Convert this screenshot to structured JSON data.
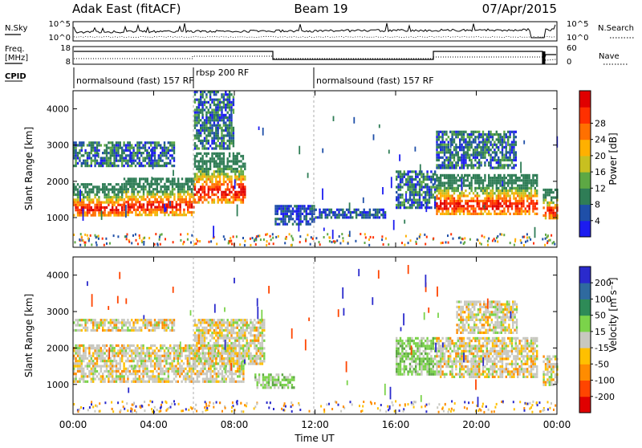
{
  "header": {
    "station": "Adak East (fitACF)",
    "beam": "Beam 19",
    "date": "07/Apr/2015"
  },
  "noise_panel": {
    "left_label": "N.Sky",
    "right_label": "N.Search",
    "left_ticks": [
      "10^5",
      "10^0"
    ],
    "right_ticks": [
      "10^5",
      "10^0"
    ]
  },
  "freq_panel": {
    "left_label_line1": "Freq.",
    "left_label_line2": "[MHz]",
    "right_label": "Nave",
    "left_ticks": [
      "18",
      "8"
    ],
    "right_ticks": [
      "60",
      "0"
    ],
    "cpid_label": "CPID"
  },
  "cpid_segments": [
    {
      "label": "normalsound (fast) 157 RF",
      "start_hour": 0
    },
    {
      "label": "rbsp 200 RF",
      "start_hour": 6
    },
    {
      "label": "normalsound (fast) 157 RF",
      "start_hour": 12
    }
  ],
  "time_axis": {
    "label": "Time UT",
    "ticks": [
      "00:00",
      "04:00",
      "08:00",
      "12:00",
      "16:00",
      "20:00",
      "00:00"
    ]
  },
  "chart_data": [
    {
      "type": "heatmap",
      "name": "power",
      "ylabel": "Slant Range [km]",
      "xlabel": "Time UT",
      "xlim": [
        0,
        24
      ],
      "ylim": [
        180,
        4500
      ],
      "yticks": [
        1000,
        2000,
        3000,
        4000
      ],
      "colorbar": {
        "label": "Power [dB]",
        "ticks": [
          "4",
          "8",
          "12",
          "16",
          "20",
          "24",
          "28"
        ],
        "colors": [
          "#1c1cf0",
          "#1f4fa8",
          "#2f7d56",
          "#5da844",
          "#c8c020",
          "#ffb000",
          "#ff7000",
          "#ff3000",
          "#e00000"
        ]
      },
      "echo_bands": [
        {
          "t0": 0.0,
          "t1": 2.5,
          "r0": 1050,
          "r1": 1950,
          "level": "high"
        },
        {
          "t0": 2.5,
          "t1": 6.0,
          "r0": 1100,
          "r1": 2100,
          "level": "high"
        },
        {
          "t0": 6.0,
          "t1": 8.5,
          "r0": 1400,
          "r1": 2800,
          "level": "high"
        },
        {
          "t0": 0.0,
          "t1": 5.0,
          "r0": 2450,
          "r1": 3100,
          "level": "mid"
        },
        {
          "t0": 6.0,
          "t1": 8.0,
          "r0": 2900,
          "r1": 4500,
          "level": "mid"
        },
        {
          "t0": 10.0,
          "t1": 12.0,
          "r0": 850,
          "r1": 1350,
          "level": "low"
        },
        {
          "t0": 12.0,
          "t1": 15.5,
          "r0": 1000,
          "r1": 1250,
          "level": "low"
        },
        {
          "t0": 16.0,
          "t1": 18.0,
          "r0": 1300,
          "r1": 2300,
          "level": "mid"
        },
        {
          "t0": 18.0,
          "t1": 23.0,
          "r0": 1100,
          "r1": 2200,
          "level": "high"
        },
        {
          "t0": 18.0,
          "t1": 22.0,
          "r0": 2400,
          "r1": 3400,
          "level": "mid"
        },
        {
          "t0": 23.3,
          "t1": 24.0,
          "r0": 1000,
          "r1": 1800,
          "level": "high"
        }
      ]
    },
    {
      "type": "heatmap",
      "name": "velocity",
      "ylabel": "Slant Range [km]",
      "xlabel": "Time UT",
      "xlim": [
        0,
        24
      ],
      "ylim": [
        180,
        4500
      ],
      "yticks": [
        1000,
        2000,
        3000,
        4000
      ],
      "colorbar": {
        "label": "Velocity [m s⁻¹]",
        "ticks": [
          "200",
          "100",
          "50",
          "15",
          "-15",
          "-50",
          "-100",
          "-200"
        ],
        "colors": [
          "#2a2acc",
          "#2f6a9f",
          "#2e8b57",
          "#7bd34a",
          "#c8c8c0",
          "#ffc000",
          "#ff8c00",
          "#ff4500",
          "#e00000"
        ]
      },
      "echo_bands": [
        {
          "t0": 0.0,
          "t1": 8.5,
          "r0": 1050,
          "r1": 2100,
          "level": "gray"
        },
        {
          "t0": 6.0,
          "t1": 9.5,
          "r0": 1600,
          "r1": 2800,
          "level": "gray"
        },
        {
          "t0": 0.0,
          "t1": 5.0,
          "r0": 2450,
          "r1": 2800,
          "level": "gray"
        },
        {
          "t0": 9.0,
          "t1": 11.0,
          "r0": 900,
          "r1": 1300,
          "level": "green"
        },
        {
          "t0": 16.0,
          "t1": 18.0,
          "r0": 1300,
          "r1": 2300,
          "level": "green"
        },
        {
          "t0": 18.0,
          "t1": 23.0,
          "r0": 1200,
          "r1": 2300,
          "level": "gray"
        },
        {
          "t0": 19.0,
          "t1": 22.0,
          "r0": 2400,
          "r1": 3300,
          "level": "gray"
        },
        {
          "t0": 23.3,
          "t1": 24.0,
          "r0": 1000,
          "r1": 1800,
          "level": "gray"
        }
      ]
    }
  ]
}
